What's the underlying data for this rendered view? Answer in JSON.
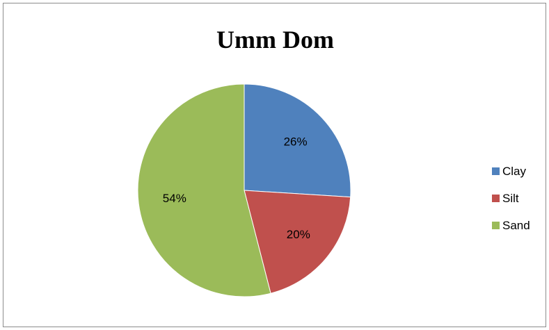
{
  "chart_data": {
    "type": "pie",
    "title": "Umm Dom",
    "categories": [
      "Clay",
      "Silt",
      "Sand"
    ],
    "values": [
      26,
      20,
      54
    ],
    "value_labels": [
      "26%",
      "20%",
      "54%"
    ],
    "colors": [
      "#4f81bd",
      "#c0504d",
      "#9bbb59"
    ],
    "legend_position": "right"
  }
}
